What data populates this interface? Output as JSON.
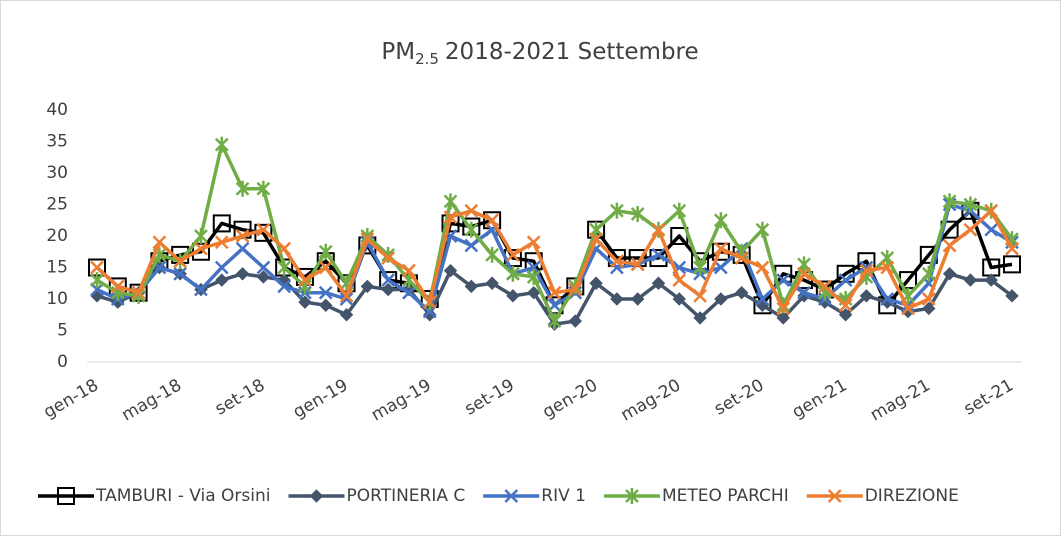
{
  "chart_data": {
    "type": "line",
    "title": {
      "main": "PM",
      "subscript": "2.5",
      "rest": "2018-2021 Settembre"
    },
    "categories": [
      "gen-18",
      null,
      null,
      null,
      "mag-18",
      null,
      null,
      null,
      "set-18",
      null,
      null,
      null,
      "gen-19",
      null,
      null,
      null,
      "mag-19",
      null,
      null,
      null,
      "set-19",
      null,
      null,
      null,
      "gen-20",
      null,
      null,
      null,
      "mag-20",
      null,
      null,
      null,
      "set-20",
      null,
      null,
      null,
      "gen-21",
      null,
      null,
      null,
      "mag-21",
      null,
      null,
      null,
      "set-21"
    ],
    "series": [
      {
        "name": "TAMBURI - Via Orsini",
        "color": "#000000",
        "marker": "square",
        "values": [
          15,
          12,
          11,
          16,
          17,
          17.5,
          22,
          21,
          20.5,
          15,
          13.5,
          16,
          12.5,
          18.5,
          13,
          12.5,
          10,
          22,
          21.5,
          22.5,
          16.5,
          16,
          9,
          12,
          21,
          16.5,
          16.5,
          16.5,
          20,
          16,
          17.5,
          17,
          9,
          14,
          13,
          11.5,
          14,
          16,
          9,
          13,
          17,
          21,
          24,
          15,
          15.5
        ]
      },
      {
        "name": "PORTINERIA C",
        "color": "#44546a",
        "marker": "diamond",
        "values": [
          10.5,
          9.5,
          11,
          15,
          14,
          11.5,
          13,
          14,
          13.5,
          13,
          9.5,
          9,
          7.5,
          12,
          11.5,
          11.5,
          7.5,
          14.5,
          12,
          12.5,
          10.5,
          11,
          6,
          6.5,
          12.5,
          10,
          10,
          12.5,
          10,
          7,
          10,
          11,
          9,
          7,
          10.5,
          9.5,
          7.5,
          10.5,
          9.5,
          8,
          8.5,
          14,
          13,
          13,
          10.5
        ]
      },
      {
        "name": "RIV 1",
        "color": "#4472c4",
        "marker": "x",
        "values": [
          11.5,
          10,
          11,
          15,
          14,
          11.5,
          15,
          18,
          15,
          12,
          11,
          11,
          10,
          19,
          13,
          11,
          8,
          20,
          18.5,
          21,
          14,
          15,
          9,
          11,
          18,
          15,
          15.5,
          17,
          15,
          14,
          15,
          18,
          10,
          13,
          11,
          10,
          13,
          15,
          10,
          9,
          12.5,
          25,
          24,
          21,
          19
        ]
      },
      {
        "name": "METEO PARCHI",
        "color": "#70ad47",
        "marker": "star",
        "values": [
          13,
          11,
          10.5,
          17,
          16,
          20,
          34.5,
          27.5,
          27.5,
          15,
          12,
          17.5,
          12.5,
          20,
          17,
          13,
          9.5,
          25.5,
          21,
          17,
          14,
          13.5,
          6.5,
          12,
          21,
          24,
          23.5,
          21,
          24,
          15,
          22.5,
          17.5,
          21,
          9,
          15.5,
          11,
          10,
          13.5,
          16.5,
          10.5,
          14,
          25.5,
          25,
          24,
          19.5
        ]
      },
      {
        "name": "DIREZIONE",
        "color": "#ed7d31",
        "marker": "x",
        "values": [
          15,
          12,
          11,
          19,
          16,
          18,
          19,
          20,
          21,
          18,
          13,
          15,
          10.5,
          19.5,
          16.5,
          14.5,
          9.5,
          23,
          24,
          22.5,
          17,
          19,
          11,
          11.5,
          19.5,
          16,
          15.5,
          21,
          13,
          10.5,
          18,
          16.5,
          15,
          8.5,
          14,
          12,
          9,
          14.5,
          15,
          8.5,
          10,
          18.5,
          21,
          24,
          18
        ]
      }
    ],
    "ylim": [
      0,
      40
    ],
    "yticks": [
      0,
      5,
      10,
      15,
      20,
      25,
      30,
      35,
      40
    ],
    "grid": false,
    "legend": "bottom"
  }
}
